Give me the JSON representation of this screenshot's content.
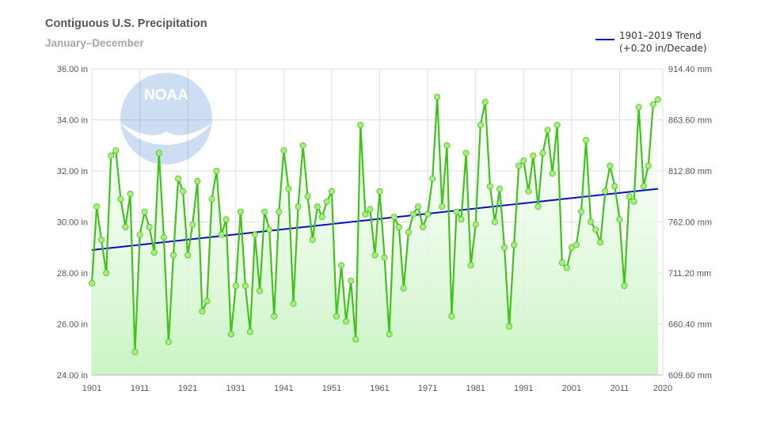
{
  "chart_data": {
    "type": "line",
    "title": "Contiguous U.S. Precipitation",
    "subtitle": "January–December",
    "legend": {
      "label_line1": "1901–2019 Trend",
      "label_line2": "(+0.20 in/Decade)",
      "placement": "top-right"
    },
    "xlim": [
      1901,
      2020
    ],
    "ylim": [
      24,
      36
    ],
    "x_ticks": [
      "1901",
      "1911",
      "1921",
      "1931",
      "1941",
      "1951",
      "1961",
      "1971",
      "1981",
      "1991",
      "2001",
      "2011",
      "2020"
    ],
    "y_ticks_left": [
      "24.00 in",
      "26.00 in",
      "28.00 in",
      "30.00 in",
      "32.00 in",
      "34.00 in",
      "36.00 in"
    ],
    "y_ticks_right": [
      "609.60 mm",
      "660.40 mm",
      "711.20 mm",
      "762.00 mm",
      "812.80 mm",
      "863.60 mm",
      "914.40 mm"
    ],
    "grid": true,
    "logo": "NOAA",
    "colors": {
      "series": "#3fc41a",
      "marker": "#a9ee7a",
      "trend": "#0b0bc8",
      "fill_top": "#ffffff",
      "fill_bottom": "#c9f4c2",
      "grid": "#dedede"
    },
    "series": [
      {
        "x": [
          1901,
          1902,
          1903,
          1904,
          1905,
          1906,
          1907,
          1908,
          1909,
          1910,
          1911,
          1912,
          1913,
          1914,
          1915,
          1916,
          1917,
          1918,
          1919,
          1920,
          1921,
          1922,
          1923,
          1924,
          1925,
          1926,
          1927,
          1928,
          1929,
          1930,
          1931,
          1932,
          1933,
          1934,
          1935,
          1936,
          1937,
          1938,
          1939,
          1940,
          1941,
          1942,
          1943,
          1944,
          1945,
          1946,
          1947,
          1948,
          1949,
          1950,
          1951,
          1952,
          1953,
          1954,
          1955,
          1956,
          1957,
          1958,
          1959,
          1960,
          1961,
          1962,
          1963,
          1964,
          1965,
          1966,
          1967,
          1968,
          1969,
          1970,
          1971,
          1972,
          1973,
          1974,
          1975,
          1976,
          1977,
          1978,
          1979,
          1980,
          1981,
          1982,
          1983,
          1984,
          1985,
          1986,
          1987,
          1988,
          1989,
          1990,
          1991,
          1992,
          1993,
          1994,
          1995,
          1996,
          1997,
          1998,
          1999,
          2000,
          2001,
          2002,
          2003,
          2004,
          2005,
          2006,
          2007,
          2008,
          2009,
          2010,
          2011,
          2012,
          2013,
          2014,
          2015,
          2016,
          2017,
          2018,
          2019
        ],
        "y": [
          27.6,
          30.6,
          29.3,
          28.0,
          32.6,
          32.8,
          30.9,
          29.8,
          31.1,
          24.9,
          29.5,
          30.4,
          29.8,
          28.8,
          32.7,
          29.4,
          25.3,
          28.7,
          31.7,
          31.2,
          28.7,
          29.9,
          31.6,
          26.5,
          26.9,
          30.9,
          32.0,
          29.5,
          30.1,
          25.6,
          27.5,
          30.4,
          27.5,
          25.7,
          29.5,
          27.3,
          30.4,
          29.7,
          26.3,
          30.4,
          32.8,
          31.3,
          26.8,
          30.6,
          33.0,
          31.0,
          29.3,
          30.6,
          30.2,
          30.8,
          31.2,
          26.3,
          28.3,
          26.1,
          27.7,
          25.4,
          33.8,
          30.3,
          30.5,
          28.7,
          31.2,
          28.6,
          25.6,
          30.2,
          29.8,
          27.4,
          29.6,
          30.3,
          30.6,
          29.8,
          30.3,
          31.7,
          34.9,
          30.6,
          33.0,
          26.3,
          30.4,
          30.1,
          32.7,
          28.3,
          29.9,
          33.8,
          34.7,
          31.4,
          30.0,
          31.3,
          29.0,
          25.9,
          29.1,
          32.2,
          32.4,
          31.2,
          32.6,
          30.6,
          32.7,
          33.6,
          31.9,
          33.8,
          28.4,
          28.2,
          29.0,
          29.1,
          30.4,
          33.2,
          30.0,
          29.7,
          29.2,
          31.2,
          32.2,
          31.4,
          30.1,
          27.5,
          31.0,
          30.8,
          34.5,
          31.4,
          32.2,
          34.6,
          34.8
        ]
      }
    ],
    "trend": {
      "x": [
        1901,
        2019
      ],
      "y": [
        28.9,
        31.3
      ]
    }
  }
}
